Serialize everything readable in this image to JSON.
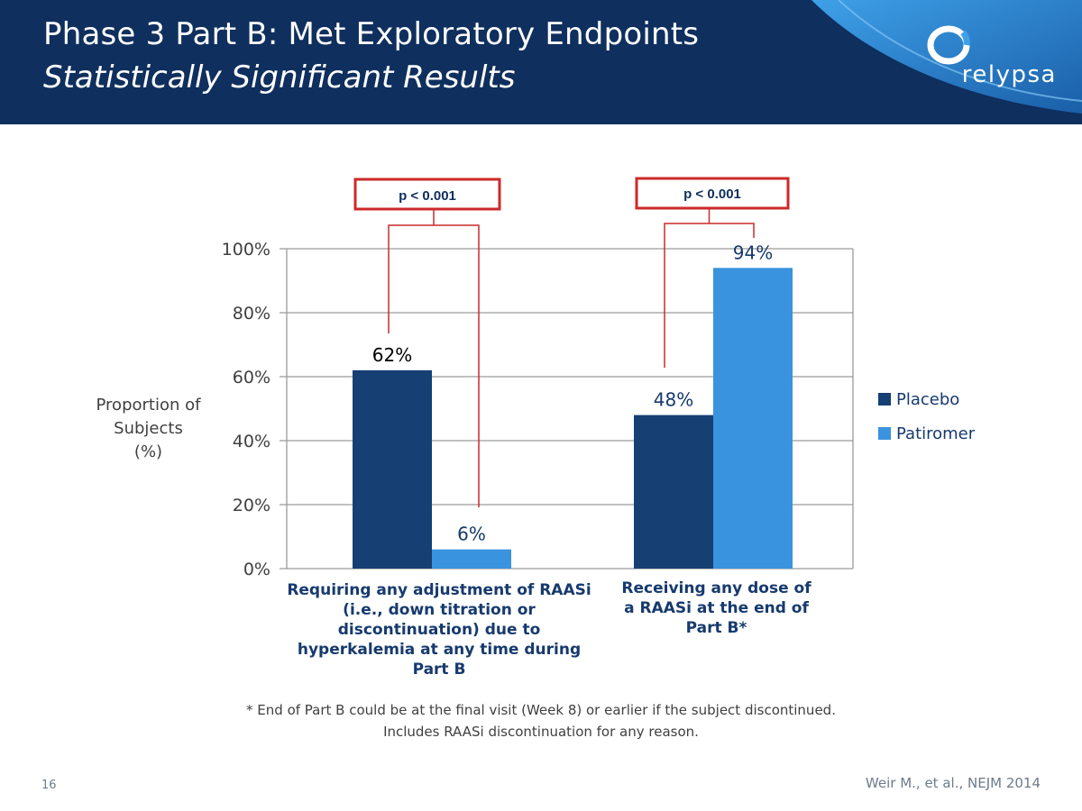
{
  "header": {
    "title": "Phase 3 Part B: Met Exploratory Endpoints",
    "subtitle": "Statistically Significant Results",
    "logo_text": "relypsa"
  },
  "colors": {
    "header_bg": "#0f2f5e",
    "placebo": "#163f73",
    "patiromer": "#3a93de",
    "pvalue_box": "#cc2a2a"
  },
  "chart_data": {
    "type": "bar",
    "categories": [
      "Requiring any adjustment of RAASi (i.e., down titration or discontinuation) due to hyperkalemia at any time during Part B",
      "Receiving any dose of a RAASi at the end of Part B*"
    ],
    "series": [
      {
        "name": "Placebo",
        "values": [
          62,
          48
        ],
        "labels": [
          "62%",
          "48%"
        ]
      },
      {
        "name": "Patiromer",
        "values": [
          6,
          94
        ],
        "labels": [
          "6%",
          "94%"
        ]
      }
    ],
    "ylabel": "Proportion of Subjects (%)",
    "ylim": [
      0,
      100
    ],
    "yticks": [
      "0%",
      "20%",
      "40%",
      "60%",
      "80%",
      "100%"
    ],
    "grid": true,
    "legend_position": "right",
    "annotations": [
      "p < 0.001",
      "p < 0.001"
    ]
  },
  "ylabel_lines": [
    "Proportion of",
    "Subjects",
    "(%)"
  ],
  "category_label_lines": [
    [
      "Requiring any adjustment of RAASi",
      "(i.e., down titration or",
      "discontinuation) due to",
      "hyperkalemia at any time during",
      "Part B"
    ],
    [
      "Receiving any dose of",
      "a RAASi at the end of",
      "Part B*"
    ]
  ],
  "legend": [
    {
      "label": "Placebo"
    },
    {
      "label": "Patiromer"
    }
  ],
  "footnote": [
    "* End of Part B could be at the final visit (Week 8) or earlier if the subject discontinued.",
    "Includes RAASi discontinuation for any reason."
  ],
  "slide_number": "16",
  "citation": "Weir M., et al., NEJM 2014"
}
